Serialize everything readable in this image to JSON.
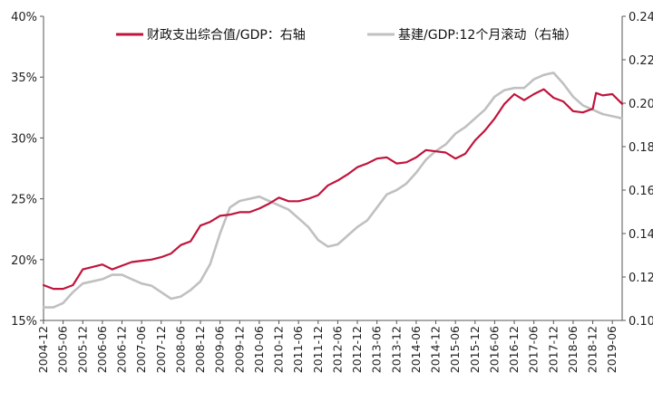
{
  "chart_data": {
    "type": "line",
    "legend": {
      "placement": "top",
      "items": [
        {
          "label": "财政支出综合值/GDP：右轴",
          "color": "#C0143C"
        },
        {
          "label": "基建/GDP:12个月滚动（右轴）",
          "color": "#C0C0C0"
        }
      ]
    },
    "grid": false,
    "y_left": {
      "ticks": [
        "40%",
        "35%",
        "30%",
        "25%",
        "20%",
        "15%"
      ],
      "range": [
        15,
        40
      ]
    },
    "y_right": {
      "ticks": [
        "0.24",
        "0.22",
        "0.20",
        "0.18",
        "0.16",
        "0.14",
        "0.12",
        "0.10"
      ],
      "range": [
        0.1,
        0.24
      ]
    },
    "x": {
      "start": "2004-12",
      "end": "2019-09",
      "tick_labels": [
        "2004-12",
        "2005-06",
        "2005-12",
        "2006-06",
        "2006-12",
        "2007-06",
        "2007-12",
        "2008-06",
        "2008-12",
        "2009-06",
        "2009-12",
        "2010-06",
        "2010-12",
        "2011-06",
        "2011-12",
        "2012-06",
        "2012-12",
        "2013-06",
        "2013-12",
        "2014-06",
        "2014-12",
        "2015-06",
        "2015-12",
        "2016-06",
        "2016-12",
        "2017-06",
        "2017-12",
        "2018-06",
        "2018-12",
        "2019-06"
      ]
    },
    "series": [
      {
        "name": "财政支出综合值/GDP：右轴",
        "color": "#C0143C",
        "axis": "left",
        "points": [
          [
            "2004-12",
            17.9
          ],
          [
            "2005-03",
            17.6
          ],
          [
            "2005-06",
            17.6
          ],
          [
            "2005-09",
            17.9
          ],
          [
            "2005-12",
            19.2
          ],
          [
            "2006-03",
            19.4
          ],
          [
            "2006-06",
            19.6
          ],
          [
            "2006-09",
            19.2
          ],
          [
            "2006-12",
            19.5
          ],
          [
            "2007-03",
            19.8
          ],
          [
            "2007-06",
            19.9
          ],
          [
            "2007-09",
            20.0
          ],
          [
            "2007-12",
            20.2
          ],
          [
            "2008-03",
            20.5
          ],
          [
            "2008-06",
            21.2
          ],
          [
            "2008-09",
            21.5
          ],
          [
            "2008-12",
            22.8
          ],
          [
            "2009-03",
            23.1
          ],
          [
            "2009-06",
            23.6
          ],
          [
            "2009-09",
            23.7
          ],
          [
            "2009-12",
            23.9
          ],
          [
            "2010-03",
            23.9
          ],
          [
            "2010-06",
            24.2
          ],
          [
            "2010-09",
            24.6
          ],
          [
            "2010-12",
            25.1
          ],
          [
            "2011-03",
            24.8
          ],
          [
            "2011-06",
            24.8
          ],
          [
            "2011-09",
            25.0
          ],
          [
            "2011-12",
            25.3
          ],
          [
            "2012-03",
            26.1
          ],
          [
            "2012-06",
            26.5
          ],
          [
            "2012-09",
            27.0
          ],
          [
            "2012-12",
            27.6
          ],
          [
            "2013-03",
            27.9
          ],
          [
            "2013-06",
            28.3
          ],
          [
            "2013-09",
            28.4
          ],
          [
            "2013-12",
            27.9
          ],
          [
            "2014-03",
            28.0
          ],
          [
            "2014-06",
            28.4
          ],
          [
            "2014-09",
            29.0
          ],
          [
            "2014-12",
            28.9
          ],
          [
            "2015-03",
            28.8
          ],
          [
            "2015-06",
            28.3
          ],
          [
            "2015-09",
            28.7
          ],
          [
            "2015-12",
            29.8
          ],
          [
            "2016-03",
            30.6
          ],
          [
            "2016-06",
            31.6
          ],
          [
            "2016-09",
            32.8
          ],
          [
            "2016-12",
            33.6
          ],
          [
            "2017-03",
            33.1
          ],
          [
            "2017-06",
            33.6
          ],
          [
            "2017-09",
            34.0
          ],
          [
            "2017-12",
            33.3
          ],
          [
            "2018-03",
            33.0
          ],
          [
            "2018-06",
            32.2
          ],
          [
            "2018-09",
            32.1
          ],
          [
            "2018-12",
            32.4
          ],
          [
            "2019-01",
            33.7
          ],
          [
            "2019-03",
            33.5
          ],
          [
            "2019-06",
            33.6
          ],
          [
            "2019-09",
            32.8
          ]
        ]
      },
      {
        "name": "基建/GDP:12个月滚动（右轴）",
        "color": "#C0C0C0",
        "axis": "right",
        "points": [
          [
            "2004-12",
            0.106
          ],
          [
            "2005-03",
            0.106
          ],
          [
            "2005-06",
            0.108
          ],
          [
            "2005-09",
            0.113
          ],
          [
            "2005-12",
            0.117
          ],
          [
            "2006-03",
            0.118
          ],
          [
            "2006-06",
            0.119
          ],
          [
            "2006-09",
            0.121
          ],
          [
            "2006-12",
            0.121
          ],
          [
            "2007-03",
            0.119
          ],
          [
            "2007-06",
            0.117
          ],
          [
            "2007-09",
            0.116
          ],
          [
            "2007-12",
            0.113
          ],
          [
            "2008-03",
            0.11
          ],
          [
            "2008-06",
            0.111
          ],
          [
            "2008-09",
            0.114
          ],
          [
            "2008-12",
            0.118
          ],
          [
            "2009-03",
            0.126
          ],
          [
            "2009-06",
            0.14
          ],
          [
            "2009-09",
            0.152
          ],
          [
            "2009-12",
            0.155
          ],
          [
            "2010-03",
            0.156
          ],
          [
            "2010-06",
            0.157
          ],
          [
            "2010-09",
            0.155
          ],
          [
            "2010-12",
            0.153
          ],
          [
            "2011-03",
            0.151
          ],
          [
            "2011-06",
            0.147
          ],
          [
            "2011-09",
            0.143
          ],
          [
            "2011-12",
            0.137
          ],
          [
            "2012-03",
            0.134
          ],
          [
            "2012-06",
            0.135
          ],
          [
            "2012-09",
            0.139
          ],
          [
            "2012-12",
            0.143
          ],
          [
            "2013-03",
            0.146
          ],
          [
            "2013-06",
            0.152
          ],
          [
            "2013-09",
            0.158
          ],
          [
            "2013-12",
            0.16
          ],
          [
            "2014-03",
            0.163
          ],
          [
            "2014-06",
            0.168
          ],
          [
            "2014-09",
            0.174
          ],
          [
            "2014-12",
            0.178
          ],
          [
            "2015-03",
            0.181
          ],
          [
            "2015-06",
            0.186
          ],
          [
            "2015-09",
            0.189
          ],
          [
            "2015-12",
            0.193
          ],
          [
            "2016-03",
            0.197
          ],
          [
            "2016-06",
            0.203
          ],
          [
            "2016-09",
            0.206
          ],
          [
            "2016-12",
            0.207
          ],
          [
            "2017-03",
            0.207
          ],
          [
            "2017-06",
            0.211
          ],
          [
            "2017-09",
            0.213
          ],
          [
            "2017-12",
            0.214
          ],
          [
            "2018-03",
            0.209
          ],
          [
            "2018-06",
            0.203
          ],
          [
            "2018-09",
            0.199
          ],
          [
            "2018-12",
            0.197
          ],
          [
            "2019-03",
            0.195
          ],
          [
            "2019-06",
            0.194
          ],
          [
            "2019-09",
            0.193
          ]
        ]
      }
    ]
  }
}
